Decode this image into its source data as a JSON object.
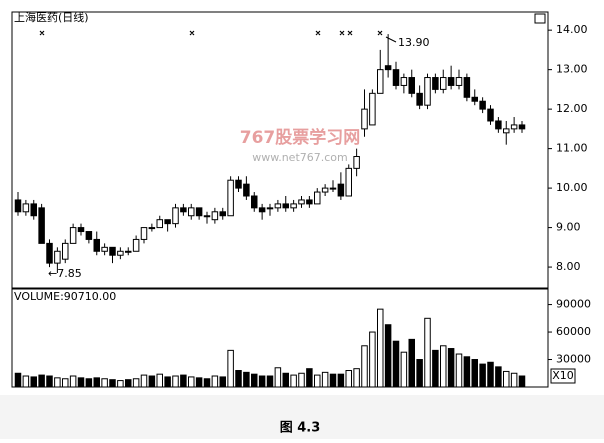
{
  "chart_data": {
    "type": "candlestick",
    "title": "上海医药(日线)",
    "annotations": {
      "high": "13.90",
      "low": "←7.85"
    },
    "watermark": {
      "name": "767股票学习网",
      "url": "www.net767.com"
    },
    "caption": "图 4.3",
    "open": [
      9.7,
      9.4,
      9.6,
      9.5,
      8.6,
      8.1,
      8.2,
      8.6,
      9.0,
      8.9,
      8.7,
      8.4,
      8.5,
      8.3,
      8.4,
      8.4,
      8.7,
      9.0,
      9.0,
      9.2,
      9.1,
      9.5,
      9.3,
      9.5,
      9.3,
      9.2,
      9.4,
      9.3,
      10.2,
      10.1,
      9.8,
      9.5,
      9.5,
      9.5,
      9.6,
      9.5,
      9.6,
      9.7,
      9.6,
      9.9,
      10.0,
      10.1,
      9.8,
      10.5,
      11.5,
      11.6,
      12.4,
      13.1,
      13.0,
      12.6,
      12.8,
      12.4,
      12.1,
      12.8,
      12.5,
      12.8,
      12.6,
      12.8,
      12.3,
      12.2,
      12.0,
      11.7,
      11.4,
      11.5,
      11.6
    ],
    "high": [
      9.9,
      9.7,
      9.7,
      9.6,
      8.7,
      8.5,
      8.7,
      9.1,
      9.1,
      8.9,
      8.9,
      8.6,
      8.5,
      8.5,
      8.5,
      8.8,
      9.0,
      9.1,
      9.3,
      9.2,
      9.6,
      9.6,
      9.6,
      9.5,
      9.4,
      9.5,
      9.5,
      10.3,
      10.3,
      10.3,
      9.9,
      9.6,
      9.6,
      9.7,
      9.8,
      9.7,
      9.8,
      9.8,
      10.0,
      10.1,
      10.2,
      10.4,
      10.6,
      11.0,
      12.5,
      12.5,
      13.5,
      13.9,
      13.2,
      12.9,
      13.0,
      12.6,
      12.9,
      12.9,
      13.0,
      13.1,
      13.0,
      12.9,
      12.5,
      12.3,
      12.1,
      11.8,
      11.7,
      11.8,
      11.7
    ],
    "low": [
      9.3,
      9.3,
      9.2,
      8.6,
      8.0,
      7.85,
      8.1,
      8.6,
      8.8,
      8.6,
      8.3,
      8.3,
      8.1,
      8.2,
      8.3,
      8.4,
      8.6,
      8.9,
      9.0,
      8.9,
      9.0,
      9.3,
      9.2,
      9.2,
      9.1,
      9.1,
      9.2,
      9.3,
      9.9,
      9.7,
      9.4,
      9.2,
      9.3,
      9.4,
      9.4,
      9.4,
      9.5,
      9.5,
      9.6,
      9.8,
      9.9,
      9.7,
      9.8,
      10.3,
      11.3,
      11.6,
      12.4,
      12.8,
      12.5,
      12.4,
      12.3,
      12.0,
      12.0,
      12.4,
      12.4,
      12.5,
      12.5,
      12.2,
      12.1,
      11.9,
      11.6,
      11.4,
      11.1,
      11.4,
      11.4
    ],
    "close": [
      9.4,
      9.6,
      9.3,
      8.6,
      8.1,
      8.4,
      8.6,
      9.0,
      8.9,
      8.7,
      8.4,
      8.5,
      8.3,
      8.4,
      8.4,
      8.7,
      9.0,
      9.0,
      9.2,
      9.1,
      9.5,
      9.4,
      9.5,
      9.3,
      9.3,
      9.4,
      9.3,
      10.2,
      10.0,
      9.8,
      9.5,
      9.4,
      9.5,
      9.6,
      9.5,
      9.6,
      9.7,
      9.6,
      9.9,
      10.0,
      10.0,
      9.8,
      10.5,
      10.8,
      12.0,
      12.4,
      13.0,
      13.0,
      12.6,
      12.8,
      12.4,
      12.1,
      12.8,
      12.5,
      12.8,
      12.6,
      12.8,
      12.3,
      12.2,
      12.0,
      11.7,
      11.5,
      11.5,
      11.6,
      11.5
    ],
    "ylim": [
      7.47,
      14.46
    ],
    "yticks": [
      {
        "value": 8,
        "label": "8.00"
      },
      {
        "value": 9,
        "label": "9.00"
      },
      {
        "value": 10,
        "label": "10.00"
      },
      {
        "value": 11,
        "label": "11.00"
      },
      {
        "value": 12,
        "label": "12.00"
      },
      {
        "value": 13,
        "label": "13.00"
      },
      {
        "value": 14,
        "label": "14.00"
      }
    ],
    "volume": {
      "label": "VOLUME:90710.00",
      "unit": "X10",
      "values": [
        15000,
        12000,
        11000,
        13000,
        12000,
        10000,
        9000,
        12000,
        10000,
        9000,
        10000,
        9000,
        8000,
        7000,
        8000,
        9000,
        13000,
        12000,
        14000,
        11000,
        12000,
        13000,
        11000,
        10000,
        9000,
        12000,
        11000,
        40000,
        18000,
        16000,
        14000,
        12000,
        12000,
        21000,
        15000,
        13000,
        15000,
        20000,
        13000,
        16000,
        14000,
        14000,
        18000,
        20000,
        45000,
        60000,
        85000,
        68000,
        50000,
        38000,
        52000,
        30000,
        75000,
        40000,
        45000,
        42000,
        36000,
        33000,
        30000,
        25000,
        27000,
        22000,
        17000,
        15000,
        12000
      ],
      "ylim": [
        0,
        107000
      ],
      "yticks": [
        30000,
        60000,
        90000
      ]
    }
  }
}
